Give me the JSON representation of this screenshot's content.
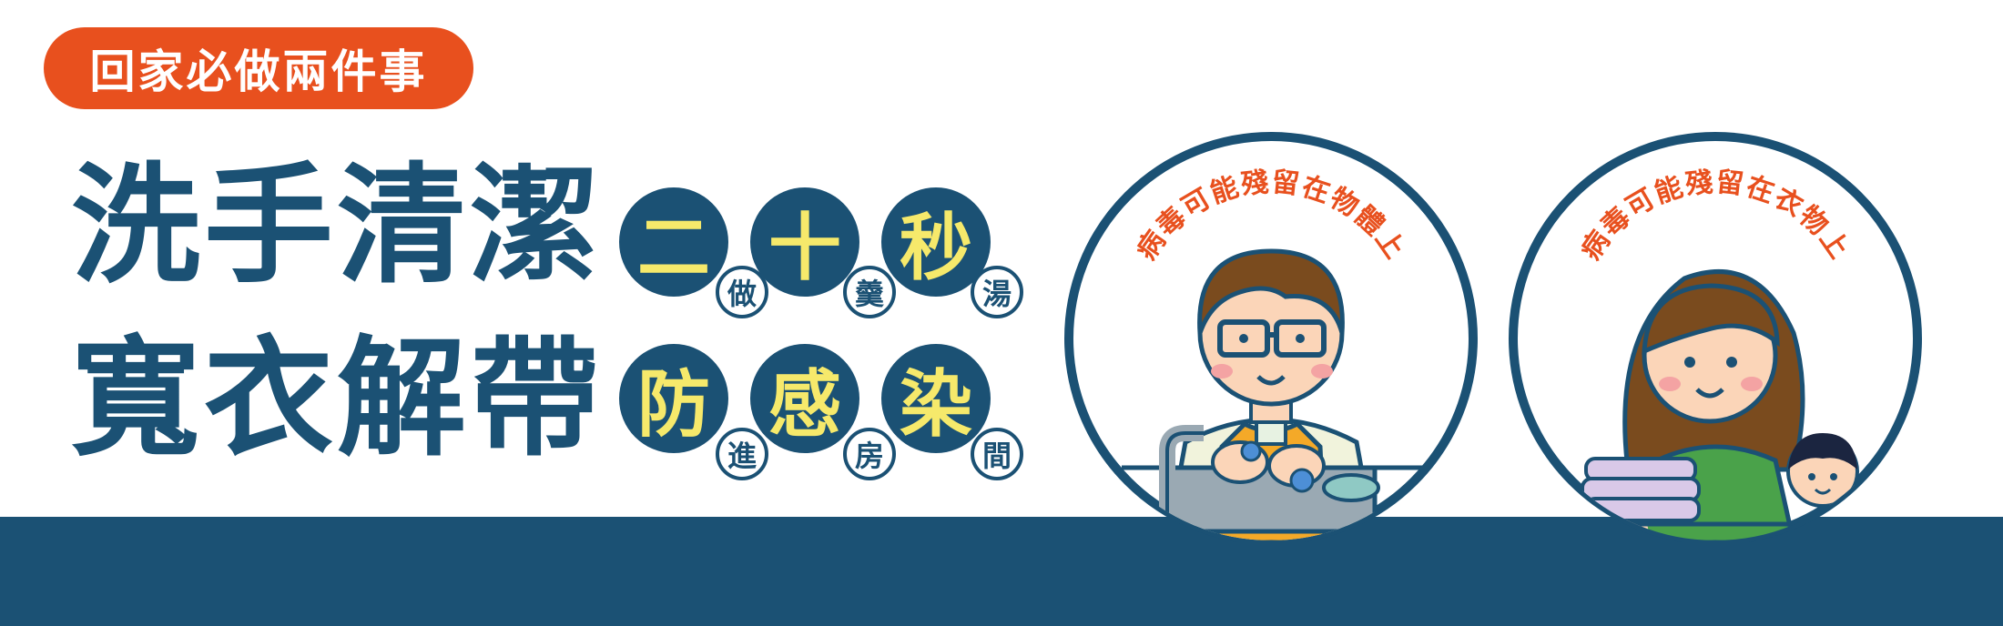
{
  "tag": {
    "label": "回家必做兩件事"
  },
  "titles": [
    "洗手清潔",
    "寬衣解帶"
  ],
  "slogans": [
    {
      "big": [
        "二",
        "十",
        "秒"
      ],
      "small": [
        "做",
        "羹",
        "湯"
      ]
    },
    {
      "big": [
        "防",
        "感",
        "染"
      ],
      "small": [
        "進",
        "房",
        "間"
      ]
    }
  ],
  "illustrations": [
    {
      "caption": "病毒可能殘留在物體上",
      "scene": "handwashing-at-sink-icon"
    },
    {
      "caption": "病毒可能殘留在衣物上",
      "scene": "folding-laundry-icon"
    }
  ],
  "colors": {
    "navy": "#1b5174",
    "orange": "#e8501e",
    "yellow": "#f6e96b"
  }
}
